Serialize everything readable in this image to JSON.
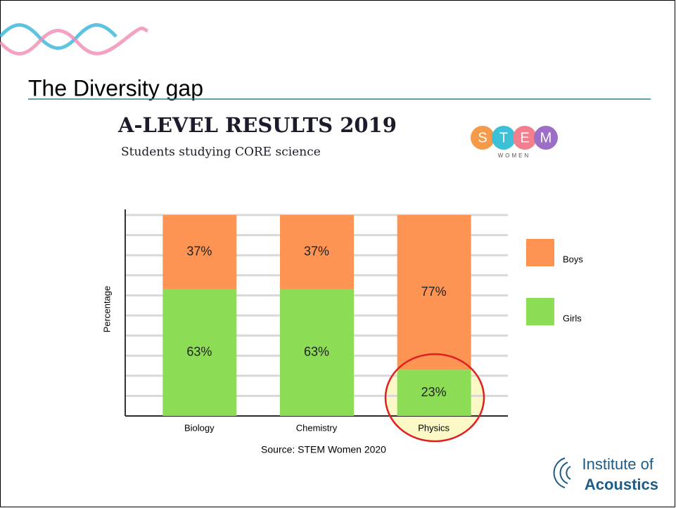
{
  "slide": {
    "title": "The Diversity gap",
    "stem_logo": {
      "letters": [
        "S",
        "T",
        "E",
        "M"
      ],
      "caption": "WOMEN"
    },
    "institute_logo": {
      "line1": "Institute of",
      "line2": "Acoustics"
    }
  },
  "chart_data": {
    "type": "stacked_bar",
    "title": "A-LEVEL RESULTS 2019",
    "subtitle": "Students studying CORE science",
    "y_label": "Percentage",
    "source": "Source: STEM Women 2020",
    "categories": [
      "Biology",
      "Chemistry",
      "Physics"
    ],
    "series": [
      {
        "name": "Girls",
        "color": "#8cdc56",
        "values": [
          63,
          63,
          23
        ],
        "value_labels": [
          "63%",
          "63%",
          "23%"
        ]
      },
      {
        "name": "Boys",
        "color": "#fd9453",
        "values": [
          37,
          37,
          77
        ],
        "value_labels": [
          "37%",
          "37%",
          "77%"
        ]
      }
    ],
    "ylim": [
      0,
      100
    ],
    "yticks": [
      0,
      10,
      20,
      30,
      40,
      50,
      60,
      70,
      80,
      90,
      100
    ],
    "grid": true
  }
}
